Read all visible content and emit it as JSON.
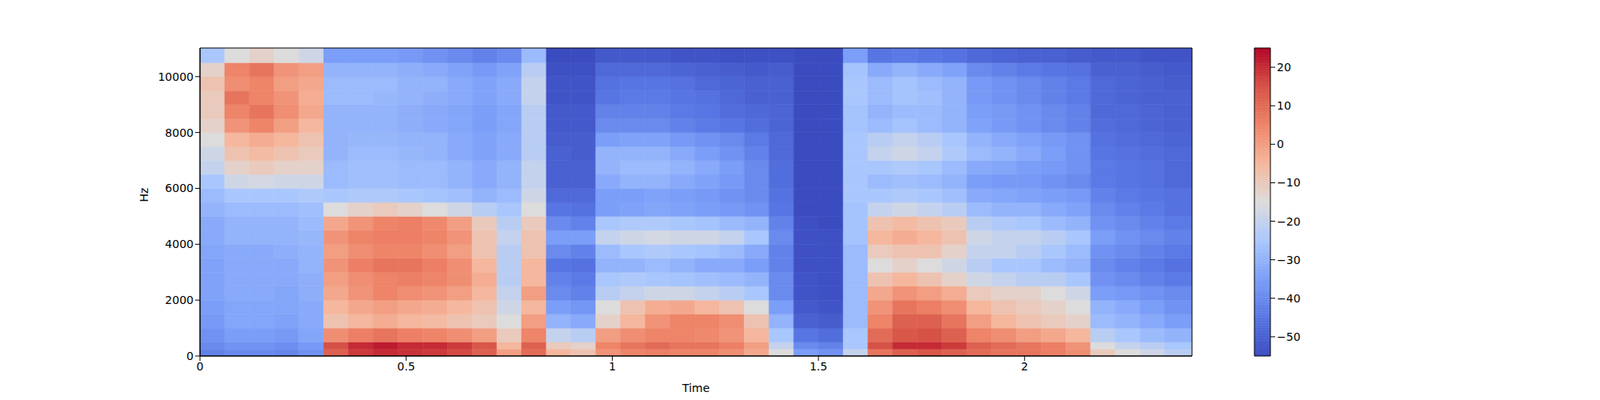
{
  "chart_data": {
    "type": "heatmap",
    "xlabel": "Time",
    "ylabel": "Hz",
    "xlim": [
      0,
      2.406
    ],
    "xticks": [
      0,
      0.5,
      1,
      1.5,
      2
    ],
    "ylim": [
      0,
      11025
    ],
    "yticks": [
      0,
      2000,
      4000,
      6000,
      8000,
      10000
    ],
    "grid": false,
    "x_bins": [
      0,
      0.06,
      0.12,
      0.18,
      0.24,
      0.3,
      0.36,
      0.42,
      0.48,
      0.54,
      0.6,
      0.66,
      0.72,
      0.78,
      0.84,
      0.9,
      0.96,
      1.02,
      1.08,
      1.14,
      1.2,
      1.26,
      1.32,
      1.38,
      1.44,
      1.5,
      1.56,
      1.62,
      1.68,
      1.74,
      1.8,
      1.86,
      1.92,
      1.98,
      2.04,
      2.1,
      2.16,
      2.22,
      2.28,
      2.34,
      2.406
    ],
    "y_bins": [
      0,
      250,
      500,
      1000,
      1500,
      2000,
      2500,
      3000,
      3500,
      4000,
      4500,
      5000,
      5500,
      6000,
      6500,
      7000,
      7500,
      8000,
      8500,
      9000,
      9500,
      10000,
      10500,
      11025
    ],
    "cells": [
      [
        -42,
        -40,
        -40,
        -41,
        -38,
        12,
        18,
        20,
        19,
        18,
        16,
        12,
        0,
        10,
        -5,
        -8,
        2,
        5,
        6,
        5,
        5,
        3,
        -2,
        -15,
        -35,
        -38,
        -20,
        8,
        12,
        14,
        12,
        10,
        8,
        8,
        6,
        3,
        -10,
        -15,
        -18,
        -22
      ],
      [
        -40,
        -38,
        -38,
        -39,
        -36,
        15,
        20,
        22,
        20,
        20,
        18,
        14,
        -5,
        12,
        -10,
        -12,
        5,
        8,
        10,
        8,
        8,
        6,
        0,
        -20,
        -40,
        -42,
        -25,
        15,
        20,
        20,
        18,
        12,
        10,
        8,
        6,
        2,
        -15,
        -20,
        -22,
        -25
      ],
      [
        -38,
        -35,
        -35,
        -36,
        -33,
        3,
        6,
        8,
        6,
        5,
        3,
        0,
        -10,
        5,
        -20,
        -22,
        0,
        3,
        5,
        5,
        4,
        2,
        -5,
        -25,
        -45,
        -47,
        -25,
        10,
        14,
        15,
        12,
        5,
        3,
        0,
        -2,
        -5,
        -22,
        -25,
        -28,
        -30
      ],
      [
        -36,
        -33,
        -33,
        -34,
        -32,
        -8,
        -5,
        -3,
        -5,
        -6,
        -8,
        -10,
        -15,
        0,
        -30,
        -32,
        -12,
        -5,
        2,
        5,
        5,
        3,
        -8,
        -30,
        -50,
        -51,
        -28,
        5,
        12,
        12,
        8,
        0,
        -5,
        -8,
        -10,
        -12,
        -28,
        -30,
        -32,
        -35
      ],
      [
        -35,
        -33,
        -33,
        -33,
        -32,
        -5,
        -2,
        0,
        -2,
        -3,
        -5,
        -8,
        -18,
        -5,
        -35,
        -37,
        -15,
        -8,
        -3,
        -2,
        -5,
        -8,
        -15,
        -35,
        -52,
        -53,
        -28,
        2,
        8,
        6,
        3,
        -5,
        -8,
        -10,
        -12,
        -15,
        -30,
        -32,
        -35,
        -38
      ],
      [
        -34,
        -32,
        -32,
        -33,
        -31,
        -2,
        2,
        5,
        3,
        2,
        0,
        -5,
        -20,
        0,
        -40,
        -42,
        -22,
        -20,
        -18,
        -18,
        -20,
        -22,
        -25,
        -40,
        -53,
        -54,
        -28,
        -2,
        2,
        0,
        -3,
        -10,
        -12,
        -12,
        -15,
        -18,
        -35,
        -36,
        -38,
        -40
      ],
      [
        -34,
        -32,
        -32,
        -32,
        -31,
        0,
        3,
        5,
        6,
        5,
        3,
        -3,
        -22,
        -5,
        -42,
        -44,
        -25,
        -24,
        -25,
        -26,
        -27,
        -28,
        -30,
        -40,
        -53,
        -54,
        -28,
        -8,
        -5,
        -8,
        -12,
        -18,
        -20,
        -22,
        -22,
        -25,
        -38,
        -40,
        -42,
        -44
      ],
      [
        -34,
        -32,
        -32,
        -32,
        -30,
        2,
        6,
        8,
        8,
        6,
        3,
        -5,
        -22,
        -5,
        -45,
        -46,
        -30,
        -30,
        -28,
        -30,
        -32,
        -32,
        -35,
        -42,
        -54,
        -54,
        -28,
        -15,
        -12,
        -15,
        -18,
        -22,
        -25,
        -25,
        -28,
        -30,
        -40,
        -42,
        -44,
        -46
      ],
      [
        -33,
        -32,
        -32,
        -31,
        -30,
        0,
        3,
        5,
        5,
        3,
        0,
        -8,
        -22,
        -8,
        -40,
        -42,
        -28,
        -25,
        -24,
        -25,
        -26,
        -28,
        -32,
        -42,
        -54,
        -54,
        -28,
        -10,
        -8,
        -8,
        -12,
        -20,
        -20,
        -22,
        -25,
        -28,
        -38,
        -40,
        -42,
        -44
      ],
      [
        -32,
        -30,
        -30,
        -30,
        -29,
        2,
        5,
        6,
        6,
        5,
        2,
        -8,
        -20,
        -8,
        -35,
        -35,
        -20,
        -18,
        -17,
        -18,
        -18,
        -20,
        -25,
        -40,
        -54,
        -54,
        -26,
        -5,
        -3,
        -5,
        -8,
        -18,
        -20,
        -20,
        -22,
        -25,
        -35,
        -38,
        -40,
        -42
      ],
      [
        -32,
        -30,
        -30,
        -30,
        -28,
        -2,
        2,
        5,
        6,
        4,
        0,
        -10,
        -22,
        -10,
        -40,
        -42,
        -25,
        -24,
        -24,
        -25,
        -26,
        -28,
        -30,
        -42,
        -54,
        -55,
        -26,
        -8,
        -6,
        -8,
        -10,
        -22,
        -24,
        -25,
        -28,
        -30,
        -38,
        -40,
        -42,
        -44
      ],
      [
        -30,
        -28,
        -28,
        -28,
        -27,
        -15,
        -12,
        -10,
        -12,
        -15,
        -18,
        -22,
        -25,
        -15,
        -45,
        -46,
        -35,
        -34,
        -33,
        -34,
        -35,
        -36,
        -38,
        -45,
        -55,
        -55,
        -26,
        -20,
        -18,
        -20,
        -22,
        -28,
        -30,
        -30,
        -32,
        -34,
        -40,
        -42,
        -44,
        -46
      ],
      [
        -28,
        -25,
        -25,
        -25,
        -24,
        -25,
        -24,
        -24,
        -25,
        -26,
        -27,
        -30,
        -28,
        -18,
        -48,
        -48,
        -35,
        -35,
        -34,
        -35,
        -36,
        -38,
        -40,
        -46,
        -55,
        -55,
        -25,
        -25,
        -24,
        -25,
        -27,
        -32,
        -33,
        -34,
        -35,
        -36,
        -42,
        -44,
        -45,
        -46
      ],
      [
        -25,
        -18,
        -17,
        -18,
        -18,
        -28,
        -27,
        -27,
        -28,
        -28,
        -30,
        -32,
        -30,
        -20,
        -50,
        -50,
        -32,
        -30,
        -30,
        -32,
        -34,
        -36,
        -40,
        -47,
        -55,
        -55,
        -25,
        -28,
        -27,
        -28,
        -30,
        -35,
        -36,
        -36,
        -38,
        -40,
        -44,
        -45,
        -46,
        -48
      ],
      [
        -20,
        -12,
        -10,
        -12,
        -12,
        -28,
        -27,
        -27,
        -28,
        -28,
        -30,
        -32,
        -30,
        -20,
        -50,
        -50,
        -30,
        -28,
        -28,
        -30,
        -32,
        -35,
        -40,
        -47,
        -55,
        -55,
        -25,
        -25,
        -24,
        -25,
        -28,
        -32,
        -33,
        -35,
        -36,
        -38,
        -44,
        -45,
        -46,
        -48
      ],
      [
        -18,
        -8,
        -6,
        -8,
        -10,
        -30,
        -28,
        -28,
        -29,
        -30,
        -32,
        -34,
        -32,
        -22,
        -50,
        -51,
        -30,
        -30,
        -30,
        -32,
        -35,
        -38,
        -42,
        -48,
        -55,
        -55,
        -25,
        -20,
        -18,
        -20,
        -24,
        -28,
        -30,
        -32,
        -35,
        -38,
        -45,
        -46,
        -47,
        -48
      ],
      [
        -15,
        -5,
        -3,
        -5,
        -8,
        -30,
        -29,
        -29,
        -30,
        -30,
        -32,
        -34,
        -32,
        -22,
        -51,
        -51,
        -35,
        -34,
        -34,
        -36,
        -38,
        -40,
        -44,
        -48,
        -55,
        -55,
        -25,
        -22,
        -20,
        -22,
        -25,
        -30,
        -32,
        -34,
        -36,
        -38,
        -46,
        -47,
        -48,
        -49
      ],
      [
        -12,
        2,
        5,
        0,
        -5,
        -30,
        -30,
        -30,
        -31,
        -32,
        -33,
        -35,
        -33,
        -22,
        -52,
        -52,
        -40,
        -40,
        -40,
        -42,
        -44,
        -45,
        -47,
        -49,
        -55,
        -55,
        -26,
        -28,
        -26,
        -28,
        -30,
        -34,
        -36,
        -38,
        -40,
        -42,
        -47,
        -48,
        -49,
        -50
      ],
      [
        -10,
        5,
        8,
        3,
        -2,
        -30,
        -30,
        -30,
        -31,
        -32,
        -33,
        -35,
        -33,
        -22,
        -52,
        -52,
        -42,
        -42,
        -42,
        -44,
        -45,
        -47,
        -48,
        -49,
        -55,
        -55,
        -26,
        -30,
        -28,
        -28,
        -30,
        -35,
        -36,
        -38,
        -40,
        -42,
        -48,
        -48,
        -49,
        -50
      ],
      [
        -10,
        8,
        5,
        2,
        -3,
        -28,
        -28,
        -29,
        -30,
        -31,
        -32,
        -34,
        -32,
        -20,
        -53,
        -53,
        -45,
        -44,
        -44,
        -45,
        -46,
        -48,
        -50,
        -50,
        -55,
        -55,
        -25,
        -28,
        -26,
        -27,
        -30,
        -36,
        -38,
        -40,
        -42,
        -44,
        -48,
        -49,
        -50,
        -50
      ],
      [
        -8,
        3,
        5,
        0,
        -2,
        -28,
        -28,
        -28,
        -30,
        -30,
        -32,
        -34,
        -32,
        -20,
        -53,
        -53,
        -46,
        -45,
        -45,
        -46,
        -48,
        -49,
        -50,
        -50,
        -55,
        -55,
        -25,
        -28,
        -26,
        -28,
        -30,
        -36,
        -38,
        -40,
        -42,
        -44,
        -48,
        -49,
        -50,
        -51
      ],
      [
        -12,
        5,
        8,
        2,
        0,
        -30,
        -30,
        -30,
        -31,
        -32,
        -34,
        -36,
        -34,
        -22,
        -54,
        -54,
        -48,
        -48,
        -48,
        -49,
        -50,
        -51,
        -52,
        -51,
        -55,
        -55,
        -26,
        -32,
        -30,
        -32,
        -34,
        -40,
        -42,
        -44,
        -45,
        -46,
        -50,
        -50,
        -51,
        -52
      ],
      [
        -25,
        -15,
        -12,
        -15,
        -18,
        -35,
        -35,
        -35,
        -36,
        -38,
        -40,
        -42,
        -40,
        -28,
        -55,
        -55,
        -52,
        -52,
        -52,
        -53,
        -53,
        -54,
        -54,
        -54,
        -55,
        -55,
        -35,
        -45,
        -44,
        -45,
        -46,
        -48,
        -49,
        -50,
        -50,
        -51,
        -52,
        -52,
        -53,
        -53
      ]
    ],
    "colorbar": {
      "range": [
        -55,
        25
      ],
      "ticks": [
        {
          "value": -50,
          "label": "−50"
        },
        {
          "value": -40,
          "label": "−40"
        },
        {
          "value": -30,
          "label": "−30"
        },
        {
          "value": -20,
          "label": "−20"
        },
        {
          "value": -10,
          "label": "−10"
        },
        0,
        10,
        20
      ]
    }
  }
}
